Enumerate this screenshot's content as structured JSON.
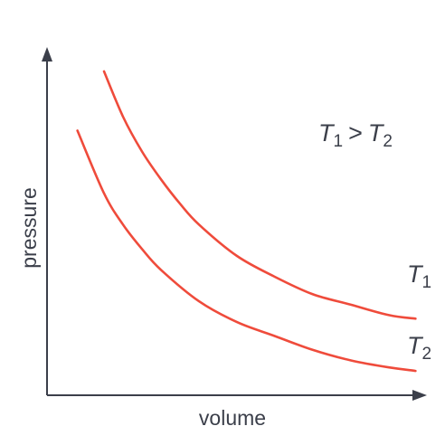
{
  "chart_data": {
    "type": "line",
    "title": "",
    "xlabel": "volume",
    "ylabel": "pressure",
    "xlim": [
      0,
      10
    ],
    "ylim": [
      0,
      10
    ],
    "grid": false,
    "legend": "none",
    "colors": {
      "curve": "#ef4b3b",
      "axis": "#3b3f4a"
    },
    "annotation": {
      "left": "T",
      "left_sub": "1",
      "op": ">",
      "right": "T",
      "right_sub": "2"
    },
    "series": [
      {
        "label": "T",
        "sub": "1",
        "x": [
          1.5,
          2.0,
          2.5,
          3.0,
          3.5,
          4.0,
          5.0,
          6.0,
          7.0,
          8.0,
          9.0,
          9.7
        ],
        "y": [
          9.3,
          8.0,
          7.0,
          6.2,
          5.5,
          4.9,
          4.0,
          3.4,
          2.9,
          2.6,
          2.3,
          2.2
        ]
      },
      {
        "label": "T",
        "sub": "2",
        "x": [
          0.8,
          1.5,
          2.0,
          2.5,
          3.0,
          4.0,
          5.0,
          6.0,
          7.0,
          8.0,
          9.0,
          9.7
        ],
        "y": [
          7.6,
          5.8,
          4.9,
          4.2,
          3.6,
          2.7,
          2.1,
          1.7,
          1.3,
          1.0,
          0.8,
          0.7
        ]
      }
    ]
  }
}
